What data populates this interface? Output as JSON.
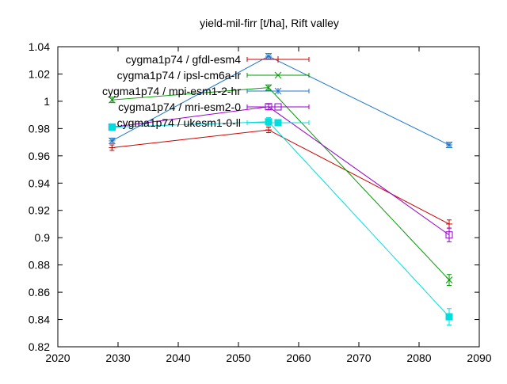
{
  "chart_data": {
    "type": "line",
    "title": "yield-mil-firr [t/ha], Rift valley",
    "xlabel": "",
    "ylabel": "",
    "xlim": [
      2020,
      2090
    ],
    "ylim": [
      0.82,
      1.04
    ],
    "xticks": [
      2020,
      2030,
      2040,
      2050,
      2060,
      2070,
      2080,
      2090
    ],
    "yticks": [
      0.82,
      0.84,
      0.86,
      0.88,
      0.9,
      0.92,
      0.94,
      0.96,
      0.98,
      1,
      1.02,
      1.04
    ],
    "grid": false,
    "legend": "top-left, inside plot",
    "series": [
      {
        "name": "cygma1p74 / gfdl-esm4",
        "color": "#cc0000",
        "marker": "plus",
        "points": [
          {
            "x": 2029,
            "y": 0.966,
            "err": 0.002
          },
          {
            "x": 2055,
            "y": 0.979,
            "err": 0.002
          },
          {
            "x": 2085,
            "y": 0.91,
            "err": 0.003
          }
        ]
      },
      {
        "name": "cygma1p74 / ipsl-cm6a-lr",
        "color": "#009900",
        "marker": "cross",
        "points": [
          {
            "x": 2029,
            "y": 1.001,
            "err": 0.002
          },
          {
            "x": 2055,
            "y": 1.01,
            "err": 0.002
          },
          {
            "x": 2085,
            "y": 0.869,
            "err": 0.004
          }
        ]
      },
      {
        "name": "cygma1p74 / mpi-esm1-2-hr",
        "color": "#1f77cc",
        "marker": "star",
        "points": [
          {
            "x": 2029,
            "y": 0.971,
            "err": 0.002
          },
          {
            "x": 2055,
            "y": 1.033,
            "err": 0.002
          },
          {
            "x": 2085,
            "y": 0.968,
            "err": 0.002
          }
        ]
      },
      {
        "name": "cygma1p74 / mri-esm2-0",
        "color": "#9900cc",
        "marker": "open-square",
        "points": [
          {
            "x": 2029,
            "y": 0.981,
            "err": 0.002
          },
          {
            "x": 2055,
            "y": 0.996,
            "err": 0.002
          },
          {
            "x": 2085,
            "y": 0.902,
            "err": 0.005
          }
        ]
      },
      {
        "name": "cygma1p74 / ukesm1-0-ll",
        "color": "#00dddd",
        "marker": "filled-square",
        "points": [
          {
            "x": 2029,
            "y": 0.981,
            "err": 0.002
          },
          {
            "x": 2055,
            "y": 0.985,
            "err": 0.003
          },
          {
            "x": 2085,
            "y": 0.842,
            "err": 0.006
          }
        ]
      }
    ]
  }
}
